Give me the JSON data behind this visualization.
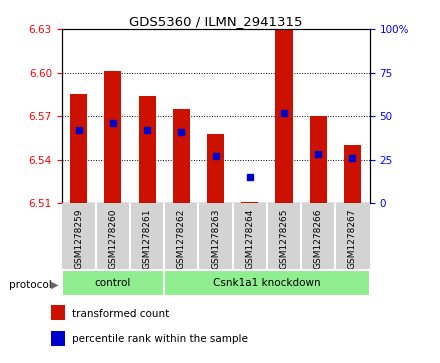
{
  "title": "GDS5360 / ILMN_2941315",
  "samples": [
    "GSM1278259",
    "GSM1278260",
    "GSM1278261",
    "GSM1278262",
    "GSM1278263",
    "GSM1278264",
    "GSM1278265",
    "GSM1278266",
    "GSM1278267"
  ],
  "bar_tops": [
    6.585,
    6.601,
    6.584,
    6.575,
    6.558,
    6.511,
    6.63,
    6.57,
    6.55
  ],
  "bar_bottoms": [
    6.51,
    6.51,
    6.51,
    6.51,
    6.51,
    6.51,
    6.51,
    6.51,
    6.51
  ],
  "blue_dot_pct": [
    42,
    46,
    42,
    41,
    27,
    15,
    52,
    28,
    26
  ],
  "ylim_left": [
    6.51,
    6.63
  ],
  "ylim_right": [
    0,
    100
  ],
  "yticks_left": [
    6.51,
    6.54,
    6.57,
    6.6,
    6.63
  ],
  "yticks_right": [
    0,
    25,
    50,
    75,
    100
  ],
  "groups": [
    {
      "label": "control",
      "start": 0,
      "end": 3
    },
    {
      "label": "Csnk1a1 knockdown",
      "start": 3,
      "end": 9
    }
  ],
  "bar_color": "#cc1100",
  "dot_color": "#0000cc",
  "legend_items": [
    {
      "label": "transformed count",
      "color": "#cc1100"
    },
    {
      "label": "percentile rank within the sample",
      "color": "#0000cc"
    }
  ],
  "protocol_label": "protocol",
  "tick_label_area_bg": "#d3d3d3",
  "group_color": "#90EE90"
}
